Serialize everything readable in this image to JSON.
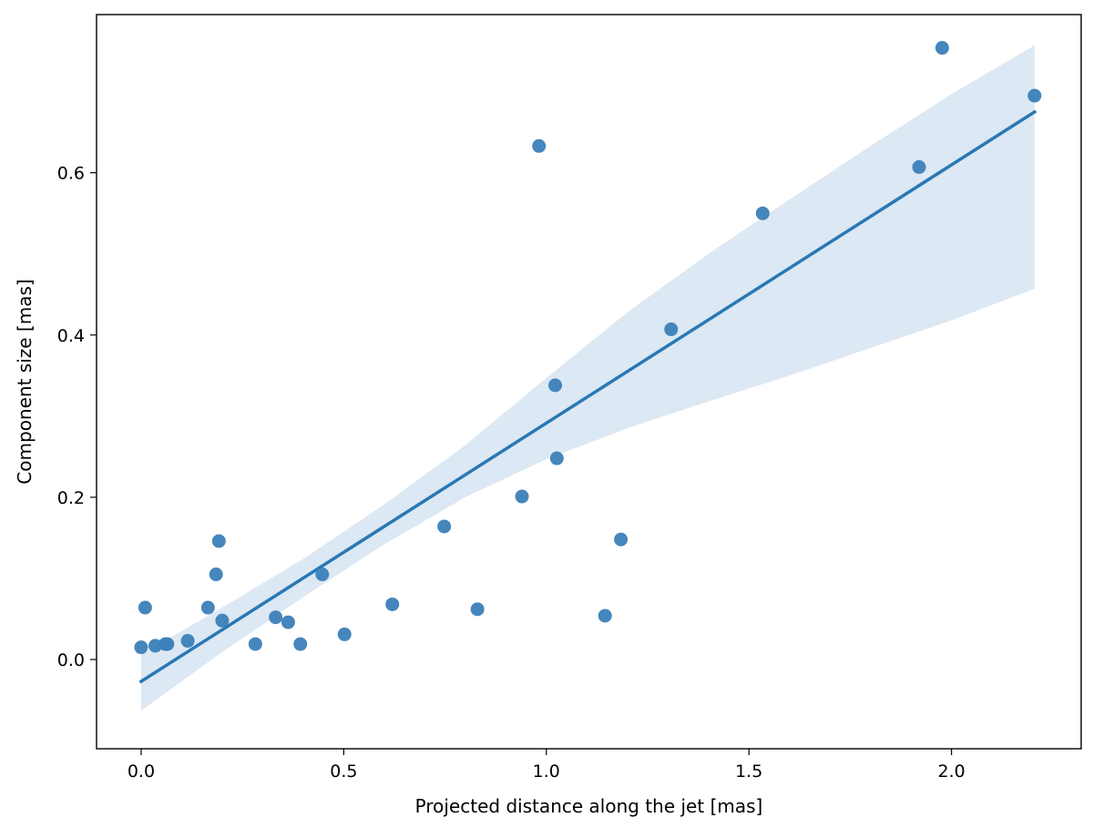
{
  "chart_data": {
    "type": "scatter",
    "title": "",
    "xlabel": "Projected distance along the jet [mas]",
    "ylabel": "Component size [mas]",
    "xlim": [
      -0.11,
      2.32
    ],
    "ylim": [
      -0.11,
      0.795
    ],
    "xticks": [
      0.0,
      0.5,
      1.0,
      1.5,
      2.0
    ],
    "xtick_labels": [
      "0.0",
      "0.5",
      "1.0",
      "1.5",
      "2.0"
    ],
    "yticks": [
      0.0,
      0.2,
      0.4,
      0.6
    ],
    "ytick_labels": [
      "0.0",
      "0.2",
      "0.4",
      "0.6"
    ],
    "grid": false,
    "legend": "none",
    "colors": {
      "points": "#3b7fb8",
      "fit_line": "#2878b5",
      "confidence_band": "#dce8f3"
    },
    "points": [
      {
        "x": 0.0,
        "y": 0.015
      },
      {
        "x": 0.01,
        "y": 0.064
      },
      {
        "x": 0.035,
        "y": 0.017
      },
      {
        "x": 0.06,
        "y": 0.019
      },
      {
        "x": 0.065,
        "y": 0.019
      },
      {
        "x": 0.115,
        "y": 0.023
      },
      {
        "x": 0.165,
        "y": 0.064
      },
      {
        "x": 0.185,
        "y": 0.105
      },
      {
        "x": 0.192,
        "y": 0.146
      },
      {
        "x": 0.2,
        "y": 0.048
      },
      {
        "x": 0.282,
        "y": 0.019
      },
      {
        "x": 0.332,
        "y": 0.052
      },
      {
        "x": 0.363,
        "y": 0.046
      },
      {
        "x": 0.393,
        "y": 0.019
      },
      {
        "x": 0.447,
        "y": 0.105
      },
      {
        "x": 0.502,
        "y": 0.031
      },
      {
        "x": 0.62,
        "y": 0.068
      },
      {
        "x": 0.748,
        "y": 0.164
      },
      {
        "x": 0.83,
        "y": 0.062
      },
      {
        "x": 0.94,
        "y": 0.201
      },
      {
        "x": 0.982,
        "y": 0.633
      },
      {
        "x": 1.022,
        "y": 0.338
      },
      {
        "x": 1.026,
        "y": 0.248
      },
      {
        "x": 1.145,
        "y": 0.054
      },
      {
        "x": 1.184,
        "y": 0.148
      },
      {
        "x": 1.308,
        "y": 0.407
      },
      {
        "x": 1.534,
        "y": 0.55
      },
      {
        "x": 1.92,
        "y": 0.607
      },
      {
        "x": 1.977,
        "y": 0.754
      },
      {
        "x": 2.205,
        "y": 0.695
      }
    ],
    "fit_line": {
      "x": [
        0.0,
        2.205
      ],
      "y": [
        -0.027,
        0.675
      ]
    },
    "confidence_band": {
      "x": [
        0.0,
        0.2,
        0.4,
        0.6,
        0.8,
        1.0,
        1.2,
        1.4,
        1.6,
        1.8,
        2.0,
        2.205
      ],
      "lower": [
        -0.063,
        0.009,
        0.077,
        0.142,
        0.2,
        0.247,
        0.285,
        0.318,
        0.35,
        0.384,
        0.418,
        0.457
      ],
      "upper": [
        0.006,
        0.064,
        0.124,
        0.191,
        0.264,
        0.347,
        0.428,
        0.5,
        0.567,
        0.633,
        0.697,
        0.757
      ]
    }
  }
}
